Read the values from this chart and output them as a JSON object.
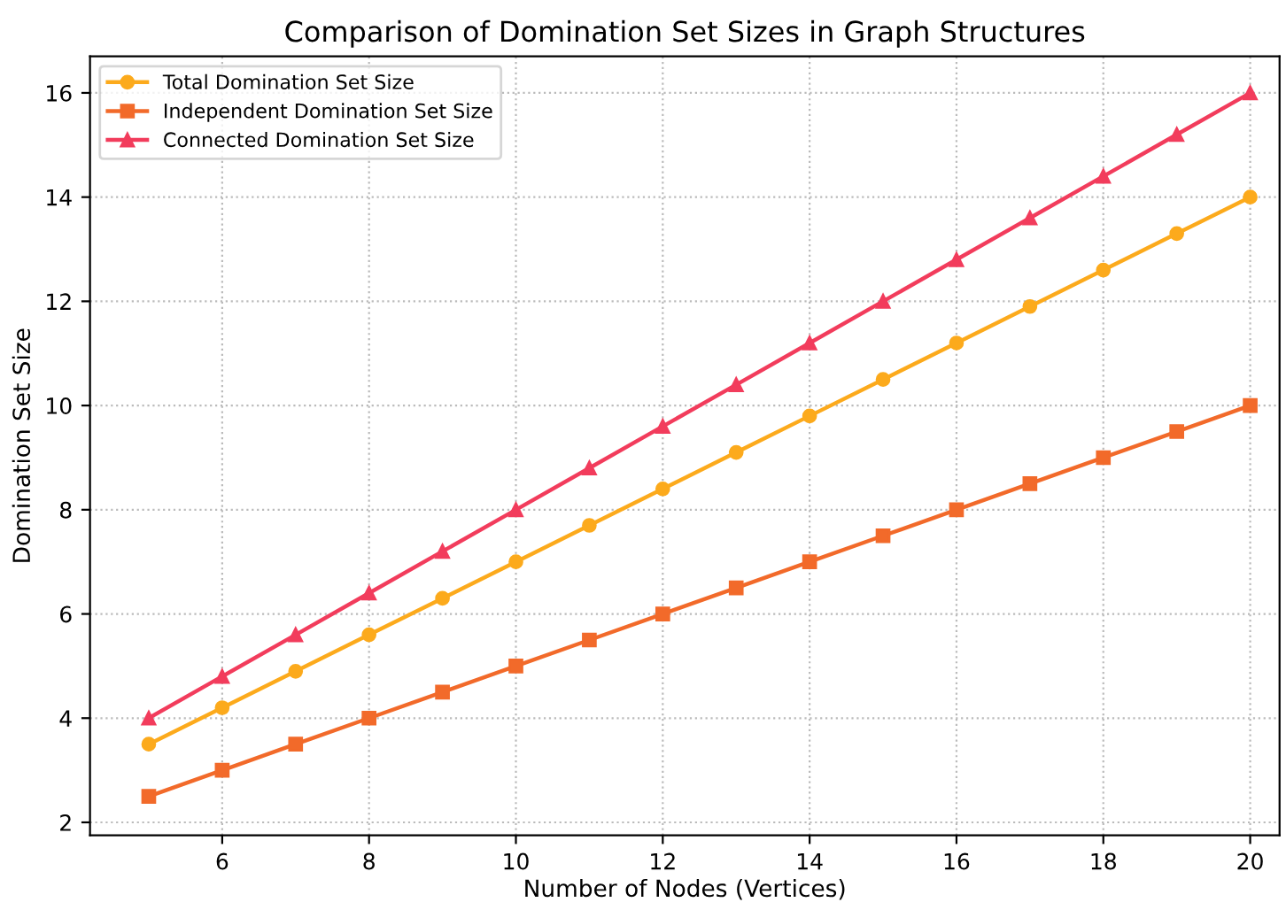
{
  "chart_data": {
    "type": "line",
    "title": "Comparison of Domination Set Sizes in Graph Structures",
    "xlabel": "Number of Nodes (Vertices)",
    "ylabel": "Domination Set Size",
    "x": [
      5,
      6,
      7,
      8,
      9,
      10,
      11,
      12,
      13,
      14,
      15,
      16,
      17,
      18,
      19,
      20
    ],
    "series": [
      {
        "name": "Total Domination Set Size",
        "color": "#fcaa1c",
        "marker": "circle",
        "values": [
          3.5,
          4.2,
          4.9,
          5.6,
          6.3,
          7.0,
          7.7,
          8.4,
          9.1,
          9.8,
          10.5,
          11.2,
          11.9,
          12.6,
          13.3,
          14.0
        ]
      },
      {
        "name": "Independent Domination Set Size",
        "color": "#f26a2a",
        "marker": "square",
        "values": [
          2.5,
          3.0,
          3.5,
          4.0,
          4.5,
          5.0,
          5.5,
          6.0,
          6.5,
          7.0,
          7.5,
          8.0,
          8.5,
          9.0,
          9.5,
          10.0
        ]
      },
      {
        "name": "Connected Domination Set Size",
        "color": "#f23c5c",
        "marker": "triangle",
        "values": [
          4.0,
          4.8,
          5.6,
          6.4,
          7.2,
          8.0,
          8.8,
          9.6,
          10.4,
          11.2,
          12.0,
          12.8,
          13.6,
          14.4,
          15.2,
          16.0
        ]
      }
    ],
    "xlim": [
      4.2,
      20.4
    ],
    "ylim": [
      1.75,
      16.7
    ],
    "xticks": [
      6,
      8,
      10,
      12,
      14,
      16,
      18,
      20
    ],
    "yticks": [
      2,
      4,
      6,
      8,
      10,
      12,
      14,
      16
    ],
    "grid": true,
    "legend": "top left",
    "line_style": "solid"
  }
}
